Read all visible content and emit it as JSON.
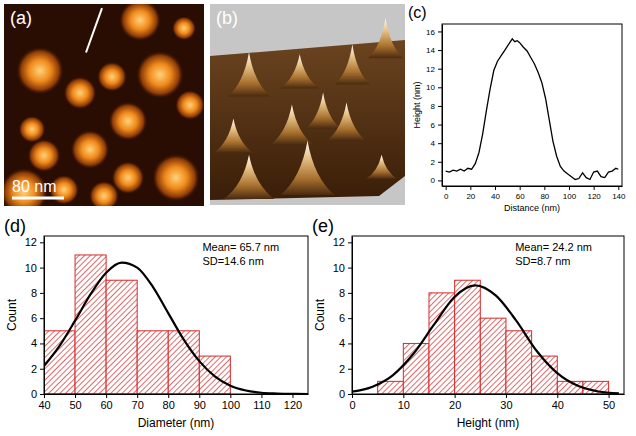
{
  "chart_data": [
    {
      "type": "image",
      "panel_label": "(a)",
      "annotations": [
        "80 nm"
      ]
    },
    {
      "type": "surface",
      "panel_label": "(b)"
    },
    {
      "type": "line",
      "panel_label": "(c)",
      "x_label": "Distance (nm)",
      "y_label": "Height (nm)",
      "color": "#000000",
      "x": [
        0,
        3,
        6,
        9,
        12,
        15,
        18,
        21,
        24,
        27,
        30,
        33,
        36,
        39,
        42,
        45,
        48,
        51,
        54,
        56,
        58,
        60,
        63,
        66,
        69,
        72,
        75,
        78,
        81,
        84,
        87,
        90,
        93,
        96,
        99,
        102,
        105,
        108,
        111,
        114,
        117,
        120,
        123,
        126,
        129,
        132,
        135,
        138,
        140
      ],
      "values": [
        1.0,
        0.9,
        1.1,
        1.0,
        1.2,
        1.0,
        1.3,
        1.2,
        1.8,
        3.0,
        5.0,
        7.5,
        9.8,
        11.8,
        12.8,
        13.4,
        14.0,
        14.6,
        15.2,
        14.9,
        15.0,
        14.8,
        14.3,
        13.9,
        13.2,
        12.5,
        11.6,
        10.5,
        8.8,
        6.5,
        4.2,
        2.6,
        1.5,
        1.0,
        0.7,
        0.4,
        0.1,
        0.2,
        0.8,
        0.3,
        0.1,
        0.9,
        1.0,
        0.4,
        0.3,
        0.9,
        1.0,
        1.3,
        1.2
      ],
      "xlim": [
        -3,
        143
      ],
      "xticks": [
        0,
        20,
        40,
        60,
        80,
        100,
        120,
        140
      ],
      "ylim": [
        -0.6,
        16.8
      ],
      "yticks": [
        0,
        2,
        4,
        6,
        8,
        10,
        12,
        14,
        16
      ]
    },
    {
      "type": "histogram",
      "panel_label": "(d)",
      "x_label": "Diameter (nm)",
      "y_label": "Count",
      "color": "#d42a2a",
      "bins": [
        40,
        50,
        60,
        70,
        80,
        90,
        100
      ],
      "counts": [
        5,
        11,
        9,
        5,
        5,
        3
      ],
      "annotations": [
        "Mean= 65.7 nm",
        "SD=14.6 nm"
      ],
      "series": [
        {
          "type": "line",
          "color": "#000000",
          "x": [
            40,
            45,
            50,
            55,
            60,
            65,
            70,
            75,
            80,
            85,
            90,
            95,
            100,
            105,
            110,
            115,
            120,
            125
          ],
          "values": [
            2.2,
            3.8,
            5.8,
            7.9,
            9.6,
            10.4,
            10.0,
            8.5,
            6.4,
            4.3,
            2.6,
            1.4,
            0.66,
            0.28,
            0.1,
            0.04,
            0.01,
            0.0
          ]
        }
      ],
      "xlim": [
        40,
        125
      ],
      "xticks": [
        40,
        50,
        60,
        70,
        80,
        90,
        100,
        110,
        120
      ],
      "ylim": [
        0,
        12.5
      ],
      "yticks": [
        0,
        2,
        4,
        6,
        8,
        10,
        12
      ]
    },
    {
      "type": "histogram",
      "panel_label": "(e)",
      "x_label": "Height (nm)",
      "y_label": "Count",
      "color": "#d42a2a",
      "bins": [
        5,
        10,
        15,
        20,
        25,
        30,
        35,
        40,
        45,
        50
      ],
      "counts": [
        1,
        4,
        8,
        9,
        6,
        5,
        3,
        1,
        1
      ],
      "annotations": [
        "Mean= 24.2 nm",
        "SD=8.7 nm"
      ],
      "series": [
        {
          "type": "line",
          "color": "#000000",
          "x": [
            0,
            4,
            8,
            12,
            16,
            20,
            24,
            28,
            32,
            36,
            40,
            44,
            48,
            52
          ],
          "values": [
            0.18,
            0.58,
            1.5,
            3.2,
            5.5,
            7.7,
            8.6,
            7.8,
            5.8,
            3.4,
            1.65,
            0.65,
            0.2,
            0.05
          ]
        }
      ],
      "xlim": [
        0,
        53
      ],
      "xticks": [
        0,
        10,
        20,
        30,
        40,
        50
      ],
      "ylim": [
        0,
        12.5
      ],
      "yticks": [
        0,
        2,
        4,
        6,
        8,
        10,
        12
      ]
    }
  ]
}
